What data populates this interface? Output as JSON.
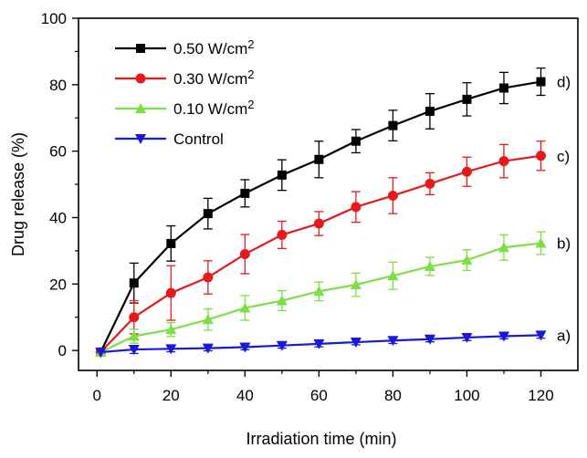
{
  "chart_data": {
    "type": "line",
    "xlabel": "Irradiation time (min)",
    "ylabel": "Drug release (%)",
    "xlim": [
      -5,
      130
    ],
    "ylim": [
      -6,
      100
    ],
    "x_ticks": [
      0,
      20,
      40,
      60,
      80,
      100,
      120
    ],
    "y_ticks": [
      0,
      20,
      40,
      60,
      80,
      100
    ],
    "x_tick_labels": [
      "0",
      "20",
      "40",
      "60",
      "80",
      "100",
      "120"
    ],
    "y_tick_labels": [
      "0",
      "20",
      "40",
      "60",
      "80",
      "100"
    ],
    "grid": false,
    "legend_position": "top-left",
    "x": [
      1,
      10,
      20,
      30,
      40,
      50,
      60,
      70,
      80,
      90,
      100,
      110,
      120
    ],
    "series": [
      {
        "name": "0.50 W/cm2",
        "legend_main": "0.50 W/cm",
        "legend_sup": "2",
        "end_label": "d)",
        "color": "#000000",
        "marker": "square",
        "values": [
          -0.5,
          20.3,
          32.2,
          41.2,
          47.3,
          52.8,
          57.5,
          63.0,
          67.7,
          72.0,
          75.6,
          79.0,
          80.9
        ],
        "errors": [
          0,
          6.0,
          5.3,
          4.6,
          4.1,
          4.6,
          5.5,
          3.5,
          4.6,
          5.3,
          5.0,
          4.7,
          4.1
        ]
      },
      {
        "name": "0.30 W/cm2",
        "legend_main": "0.30 W/cm",
        "legend_sup": "2",
        "end_label": "c)",
        "color": "#e41a1c",
        "marker": "circle",
        "values": [
          -0.5,
          10.0,
          17.3,
          22.0,
          29.0,
          34.8,
          38.2,
          43.2,
          46.6,
          50.2,
          53.8,
          57.0,
          58.6
        ],
        "errors": [
          0,
          5.0,
          8.2,
          5.0,
          5.9,
          4.1,
          3.6,
          4.6,
          5.4,
          3.3,
          4.4,
          5.0,
          4.4
        ]
      },
      {
        "name": "0.10 W/cm2",
        "legend_main": "0.10 W/cm",
        "legend_sup": "2",
        "end_label": "b)",
        "color": "#7ede45",
        "marker": "triangle-up",
        "values": [
          -0.5,
          4.3,
          6.3,
          9.3,
          12.8,
          15.0,
          17.8,
          19.8,
          22.5,
          25.3,
          27.2,
          31.0,
          32.3
        ],
        "errors": [
          0,
          2.1,
          2.1,
          3.2,
          3.7,
          3.0,
          2.8,
          3.5,
          4.1,
          2.7,
          3.1,
          3.8,
          3.4
        ]
      },
      {
        "name": "Control",
        "legend_main": "Control",
        "legend_sup": "",
        "end_label": "a)",
        "color": "#1a1ad6",
        "marker": "triangle-down",
        "values": [
          -0.5,
          0.3,
          0.5,
          0.7,
          1.0,
          1.5,
          2.0,
          2.5,
          3.0,
          3.4,
          3.9,
          4.3,
          4.6
        ],
        "errors": [
          0,
          1.2,
          0.9,
          0.8,
          0.8,
          0.8,
          0.9,
          0.8,
          0.9,
          0.8,
          0.9,
          0.8,
          0.9
        ]
      }
    ]
  }
}
